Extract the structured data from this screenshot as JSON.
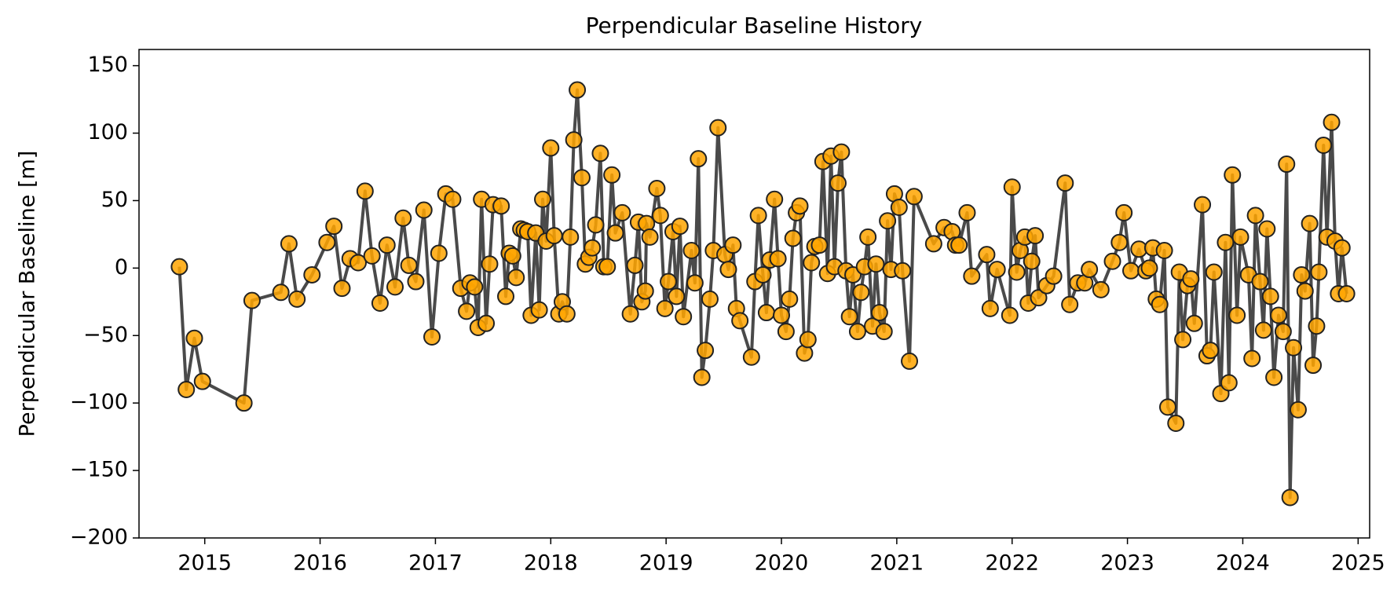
{
  "chart_data": {
    "type": "line",
    "title": "Perpendicular Baseline History",
    "y_label": "Perpendicular Baseline [m]",
    "marker_color": "#ffa500",
    "line_color": "#404040",
    "xlim": [
      2014.43,
      2025.1
    ],
    "xticks": [
      2015,
      2016,
      2017,
      2018,
      2019,
      2020,
      2021,
      2022,
      2023,
      2024,
      2025
    ],
    "ylim": [
      -200,
      162
    ],
    "yticks": [
      {
        "value": -200,
        "label": "−200"
      },
      {
        "value": -150,
        "label": "−150"
      },
      {
        "value": -100,
        "label": "−100"
      },
      {
        "value": -50,
        "label": "−50"
      },
      0,
      50,
      100,
      150
    ],
    "x": [
      2014.78,
      2014.84,
      2014.91,
      2014.98,
      2015.34,
      2015.41,
      2015.66,
      2015.73,
      2015.8,
      2015.93,
      2016.06,
      2016.12,
      2016.19,
      2016.26,
      2016.33,
      2016.39,
      2016.45,
      2016.52,
      2016.58,
      2016.65,
      2016.72,
      2016.77,
      2016.83,
      2016.9,
      2016.97,
      2017.03,
      2017.09,
      2017.15,
      2017.22,
      2017.27,
      2017.3,
      2017.34,
      2017.37,
      2017.4,
      2017.44,
      2017.47,
      2017.5,
      2017.57,
      2017.61,
      2017.64,
      2017.67,
      2017.7,
      2017.74,
      2017.77,
      2017.8,
      2017.83,
      2017.87,
      2017.9,
      2017.93,
      2017.96,
      2018.0,
      2018.03,
      2018.07,
      2018.1,
      2018.14,
      2018.17,
      2018.2,
      2018.23,
      2018.27,
      2018.3,
      2018.33,
      2018.36,
      2018.39,
      2018.43,
      2018.46,
      2018.49,
      2018.53,
      2018.56,
      2018.62,
      2018.69,
      2018.73,
      2018.76,
      2018.79,
      2018.82,
      2018.83,
      2018.86,
      2018.92,
      2018.95,
      2018.99,
      2019.02,
      2019.06,
      2019.09,
      2019.12,
      2019.15,
      2019.22,
      2019.25,
      2019.28,
      2019.31,
      2019.34,
      2019.38,
      2019.41,
      2019.45,
      2019.51,
      2019.54,
      2019.58,
      2019.61,
      2019.64,
      2019.74,
      2019.77,
      2019.8,
      2019.84,
      2019.87,
      2019.9,
      2019.94,
      2019.97,
      2020.0,
      2020.04,
      2020.07,
      2020.1,
      2020.13,
      2020.16,
      2020.2,
      2020.23,
      2020.26,
      2020.29,
      2020.33,
      2020.36,
      2020.4,
      2020.43,
      2020.46,
      2020.49,
      2020.52,
      2020.56,
      2020.59,
      2020.62,
      2020.66,
      2020.69,
      2020.72,
      2020.75,
      2020.79,
      2020.82,
      2020.85,
      2020.89,
      2020.92,
      2020.95,
      2020.98,
      2021.02,
      2021.05,
      2021.11,
      2021.15,
      2021.32,
      2021.41,
      2021.48,
      2021.51,
      2021.54,
      2021.61,
      2021.65,
      2021.78,
      2021.81,
      2021.87,
      2021.98,
      2022.0,
      2022.04,
      2022.07,
      2022.11,
      2022.14,
      2022.17,
      2022.2,
      2022.23,
      2022.3,
      2022.36,
      2022.46,
      2022.5,
      2022.57,
      2022.63,
      2022.67,
      2022.77,
      2022.87,
      2022.93,
      2022.97,
      2023.03,
      2023.1,
      2023.16,
      2023.19,
      2023.22,
      2023.25,
      2023.28,
      2023.32,
      2023.35,
      2023.42,
      2023.45,
      2023.48,
      2023.52,
      2023.55,
      2023.58,
      2023.65,
      2023.69,
      2023.72,
      2023.75,
      2023.81,
      2023.85,
      2023.88,
      2023.91,
      2023.95,
      2023.98,
      2024.05,
      2024.08,
      2024.11,
      2024.15,
      2024.18,
      2024.21,
      2024.24,
      2024.27,
      2024.31,
      2024.35,
      2024.38,
      2024.41,
      2024.44,
      2024.48,
      2024.51,
      2024.54,
      2024.58,
      2024.61,
      2024.64,
      2024.66,
      2024.7,
      2024.73,
      2024.77,
      2024.8,
      2024.83,
      2024.86,
      2024.9
    ],
    "values": [
      1,
      -90,
      -52,
      -84,
      -100,
      -24,
      -18,
      18,
      -23,
      -5,
      19,
      31,
      -15,
      7,
      4,
      57,
      9,
      -26,
      17,
      -14,
      37,
      2,
      -10,
      43,
      -51,
      11,
      55,
      51,
      -15,
      -32,
      -11,
      -14,
      -44,
      51,
      -41,
      3,
      47,
      46,
      -21,
      11,
      9,
      -7,
      29,
      28,
      27,
      -35,
      26,
      -31,
      51,
      20,
      89,
      24,
      -34,
      -25,
      -34,
      23,
      95,
      132,
      67,
      3,
      8,
      15,
      32,
      85,
      1,
      1,
      69,
      26,
      41,
      -34,
      2,
      34,
      -25,
      -17,
      33,
      23,
      59,
      39,
      -30,
      -10,
      27,
      -21,
      31,
      -36,
      13,
      -11,
      81,
      -81,
      -61,
      -23,
      13,
      104,
      10,
      -1,
      17,
      -30,
      -39,
      -66,
      -10,
      39,
      -5,
      -33,
      6,
      51,
      7,
      -35,
      -47,
      -23,
      22,
      41,
      46,
      -63,
      -53,
      4,
      16,
      17,
      79,
      -4,
      83,
      1,
      63,
      86,
      -2,
      -36,
      -5,
      -47,
      -18,
      1,
      23,
      -43,
      3,
      -33,
      -47,
      35,
      -1,
      55,
      45,
      -2,
      -69,
      53,
      18,
      30,
      27,
      17,
      17,
      41,
      -6,
      10,
      -30,
      -1,
      -35,
      60,
      -3,
      13,
      23,
      -26,
      5,
      24,
      -22,
      -13,
      -6,
      63,
      -27,
      -11,
      -11,
      -1,
      -16,
      5,
      19,
      41,
      -2,
      14,
      -2,
      0,
      15,
      -23,
      -27,
      13,
      -103,
      -115,
      -3,
      -53,
      -13,
      -8,
      -41,
      47,
      -65,
      -61,
      -3,
      -93,
      19,
      -85,
      69,
      -35,
      23,
      -5,
      -67,
      39,
      -10,
      -46,
      29,
      -21,
      -81,
      -35,
      -47,
      77,
      -170,
      -59,
      -105,
      -5,
      -17,
      33,
      -72,
      -43,
      -3,
      91,
      23,
      108,
      20,
      -19,
      15,
      -19
    ]
  }
}
